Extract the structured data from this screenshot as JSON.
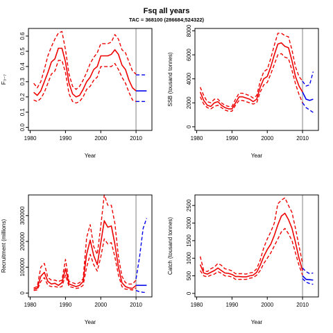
{
  "title": "Fsq all years",
  "subtitle": "TAC = 368100 (286684;524322)",
  "colors": {
    "estimate": "#ee0000",
    "forecast": "#0000ee",
    "divider": "#bebebe"
  },
  "chart_data": [
    {
      "type": "line",
      "ylabel": "F₃₋₇",
      "xlabel": "Year",
      "xlim": [
        1979.5,
        2014.5
      ],
      "ylim": [
        -0.02,
        0.65
      ],
      "xticks": [
        1980,
        1990,
        2000,
        2010
      ],
      "yticks": [
        0.0,
        0.1,
        0.2,
        0.3,
        0.4,
        0.5,
        0.6
      ],
      "ytick_labels": [
        "0.0",
        "0.1",
        "0.2",
        "0.3",
        "0.4",
        "0.5",
        "0.6"
      ],
      "divider_x": 2010,
      "estimate": {
        "x": [
          1981,
          1982,
          1983,
          1984,
          1985,
          1986,
          1987,
          1988,
          1989,
          1990,
          1991,
          1992,
          1993,
          1994,
          1995,
          1996,
          1997,
          1998,
          1999,
          2000,
          2001,
          2002,
          2003,
          2004,
          2005,
          2006,
          2007,
          2008,
          2009,
          2010
        ],
        "mean": [
          0.23,
          0.21,
          0.24,
          0.3,
          0.36,
          0.43,
          0.45,
          0.52,
          0.52,
          0.43,
          0.29,
          0.22,
          0.2,
          0.21,
          0.25,
          0.3,
          0.33,
          0.38,
          0.4,
          0.47,
          0.47,
          0.47,
          0.48,
          0.51,
          0.48,
          0.41,
          0.38,
          0.31,
          0.26,
          0.24
        ],
        "upper": [
          0.29,
          0.26,
          0.3,
          0.38,
          0.47,
          0.53,
          0.58,
          0.62,
          0.63,
          0.51,
          0.35,
          0.27,
          0.25,
          0.27,
          0.31,
          0.36,
          0.42,
          0.46,
          0.49,
          0.55,
          0.55,
          0.55,
          0.56,
          0.61,
          0.58,
          0.51,
          0.49,
          0.43,
          0.37,
          0.35
        ],
        "lower": [
          0.18,
          0.17,
          0.19,
          0.23,
          0.29,
          0.35,
          0.37,
          0.44,
          0.44,
          0.36,
          0.22,
          0.17,
          0.16,
          0.17,
          0.2,
          0.25,
          0.27,
          0.31,
          0.33,
          0.4,
          0.4,
          0.4,
          0.4,
          0.42,
          0.38,
          0.33,
          0.29,
          0.23,
          0.18,
          0.17
        ]
      },
      "forecast": {
        "x": [
          2010,
          2011,
          2012,
          2013
        ],
        "mean": [
          0.24,
          0.24,
          0.24,
          0.24
        ],
        "upper": [
          0.345,
          0.345,
          0.345,
          0.345
        ],
        "lower": [
          0.17,
          0.17,
          0.17,
          0.17
        ]
      }
    },
    {
      "type": "line",
      "ylabel": "SSB (tousand tonnes)",
      "xlabel": "Year",
      "xlim": [
        1979.5,
        2014.5
      ],
      "ylim": [
        -300,
        8200
      ],
      "xticks": [
        1980,
        1990,
        2000,
        2010
      ],
      "yticks": [
        0,
        2000,
        4000,
        6000,
        8000
      ],
      "ytick_labels": [
        "0",
        "2000",
        "4000",
        "6000",
        "8000"
      ],
      "divider_x": 2010,
      "estimate": {
        "x": [
          1981,
          1982,
          1983,
          1984,
          1985,
          1986,
          1987,
          1988,
          1989,
          1990,
          1991,
          1992,
          1993,
          1994,
          1995,
          1996,
          1997,
          1998,
          1999,
          2000,
          2001,
          2002,
          2003,
          2004,
          2005,
          2006,
          2007,
          2008,
          2009,
          2010
        ],
        "mean": [
          2900,
          2200,
          1800,
          1700,
          2000,
          2100,
          1800,
          1600,
          1500,
          1500,
          2000,
          2500,
          2500,
          2400,
          2300,
          2100,
          2300,
          3300,
          4000,
          4200,
          5000,
          6000,
          6900,
          7000,
          6700,
          6600,
          5500,
          4200,
          3400,
          2900
        ],
        "upper": [
          3300,
          2600,
          2100,
          2000,
          2300,
          2300,
          2000,
          1800,
          1700,
          1700,
          2300,
          2800,
          2800,
          2700,
          2600,
          2400,
          2600,
          3800,
          4600,
          4800,
          5700,
          6800,
          7800,
          7800,
          7600,
          7500,
          6400,
          5000,
          4200,
          3800
        ],
        "lower": [
          2500,
          1900,
          1600,
          1500,
          1700,
          1800,
          1600,
          1400,
          1300,
          1300,
          1800,
          2200,
          2200,
          2100,
          2000,
          1900,
          2000,
          2900,
          3500,
          3700,
          4400,
          5200,
          6000,
          6100,
          5800,
          5700,
          4700,
          3600,
          2700,
          2000
        ]
      },
      "forecast": {
        "x": [
          2010,
          2011,
          2012,
          2013
        ],
        "mean": [
          2900,
          2300,
          2200,
          2300
        ],
        "upper": [
          3800,
          3400,
          3500,
          4600
        ],
        "lower": [
          2000,
          1600,
          1400,
          1200
        ]
      }
    },
    {
      "type": "line",
      "ylabel": "Recruitment (millions)",
      "xlabel": "Year",
      "xlim": [
        1979.5,
        2014.5
      ],
      "ylim": [
        -15000,
        380000
      ],
      "xticks": [
        1980,
        1990,
        2000,
        2010
      ],
      "yticks": [
        0,
        100000,
        200000,
        300000
      ],
      "ytick_labels": [
        "0",
        "100000",
        "200000",
        "300000"
      ],
      "divider_x": 2010,
      "estimate": {
        "x": [
          1981,
          1982,
          1983,
          1984,
          1985,
          1986,
          1987,
          1988,
          1989,
          1990,
          1991,
          1992,
          1993,
          1994,
          1995,
          1996,
          1997,
          1998,
          1999,
          2000,
          2001,
          2002,
          2003,
          2004,
          2005,
          2006,
          2007,
          2008,
          2009,
          2010
        ],
        "mean": [
          15000,
          18000,
          65000,
          80000,
          45000,
          35000,
          38000,
          30000,
          40000,
          95000,
          35000,
          30000,
          25000,
          30000,
          45000,
          150000,
          205000,
          145000,
          110000,
          195000,
          280000,
          255000,
          260000,
          190000,
          100000,
          40000,
          25000,
          20000,
          18000,
          30000
        ],
        "upper": [
          20000,
          25000,
          100000,
          115000,
          60000,
          50000,
          50000,
          45000,
          50000,
          130000,
          45000,
          40000,
          35000,
          40000,
          55000,
          215000,
          265000,
          180000,
          150000,
          260000,
          380000,
          340000,
          340000,
          270000,
          140000,
          65000,
          40000,
          35000,
          35000,
          50000
        ],
        "lower": [
          10000,
          12000,
          45000,
          60000,
          30000,
          25000,
          25000,
          22000,
          25000,
          70000,
          25000,
          22000,
          18000,
          20000,
          30000,
          100000,
          150000,
          110000,
          85000,
          140000,
          210000,
          190000,
          195000,
          140000,
          70000,
          25000,
          15000,
          14000,
          12000,
          20000
        ]
      },
      "forecast": {
        "x": [
          2010,
          2011,
          2012,
          2013
        ],
        "mean": [
          30000,
          30000,
          30000,
          30000
        ],
        "upper": [
          55000,
          140000,
          250000,
          290000
        ],
        "lower": [
          10000,
          5000,
          3000,
          2000
        ]
      }
    },
    {
      "type": "line",
      "ylabel": "Catch (tousand tonnes)",
      "xlabel": "Year",
      "xlim": [
        1979.5,
        2014.5
      ],
      "ylim": [
        -100,
        2800
      ],
      "xticks": [
        1980,
        1990,
        2000,
        2010
      ],
      "yticks": [
        0,
        500,
        1000,
        1500,
        2000,
        2500
      ],
      "ytick_labels": [
        "0",
        "500",
        "1000",
        "1500",
        "2000",
        "2500"
      ],
      "divider_x": 2010,
      "estimate": {
        "x": [
          1981,
          1982,
          1983,
          1984,
          1985,
          1986,
          1987,
          1988,
          1989,
          1990,
          1991,
          1992,
          1993,
          1994,
          1995,
          1996,
          1997,
          1998,
          1999,
          2000,
          2001,
          2002,
          2003,
          2004,
          2005,
          2006,
          2007,
          2008,
          2009,
          2010
        ],
        "mean": [
          820,
          580,
          550,
          600,
          650,
          720,
          650,
          580,
          570,
          540,
          480,
          480,
          470,
          470,
          500,
          520,
          600,
          800,
          1050,
          1250,
          1400,
          1650,
          1950,
          2200,
          2280,
          2100,
          1850,
          1450,
          1000,
          650
        ],
        "upper": [
          1050,
          650,
          620,
          700,
          750,
          850,
          800,
          700,
          680,
          640,
          560,
          560,
          560,
          550,
          580,
          600,
          700,
          950,
          1300,
          1550,
          1750,
          2000,
          2550,
          2650,
          2720,
          2500,
          2300,
          1850,
          1350,
          850
        ],
        "lower": [
          650,
          500,
          470,
          520,
          550,
          620,
          570,
          500,
          490,
          470,
          400,
          400,
          400,
          400,
          430,
          450,
          520,
          650,
          850,
          1000,
          1150,
          1350,
          1550,
          1750,
          1850,
          1700,
          1500,
          1150,
          800,
          520
        ]
      },
      "forecast": {
        "x": [
          2010,
          2011,
          2012,
          2013
        ],
        "mean": [
          500,
          400,
          390,
          380
        ],
        "upper": [
          720,
          620,
          560,
          580
        ],
        "lower": [
          420,
          320,
          280,
          260
        ]
      }
    }
  ]
}
